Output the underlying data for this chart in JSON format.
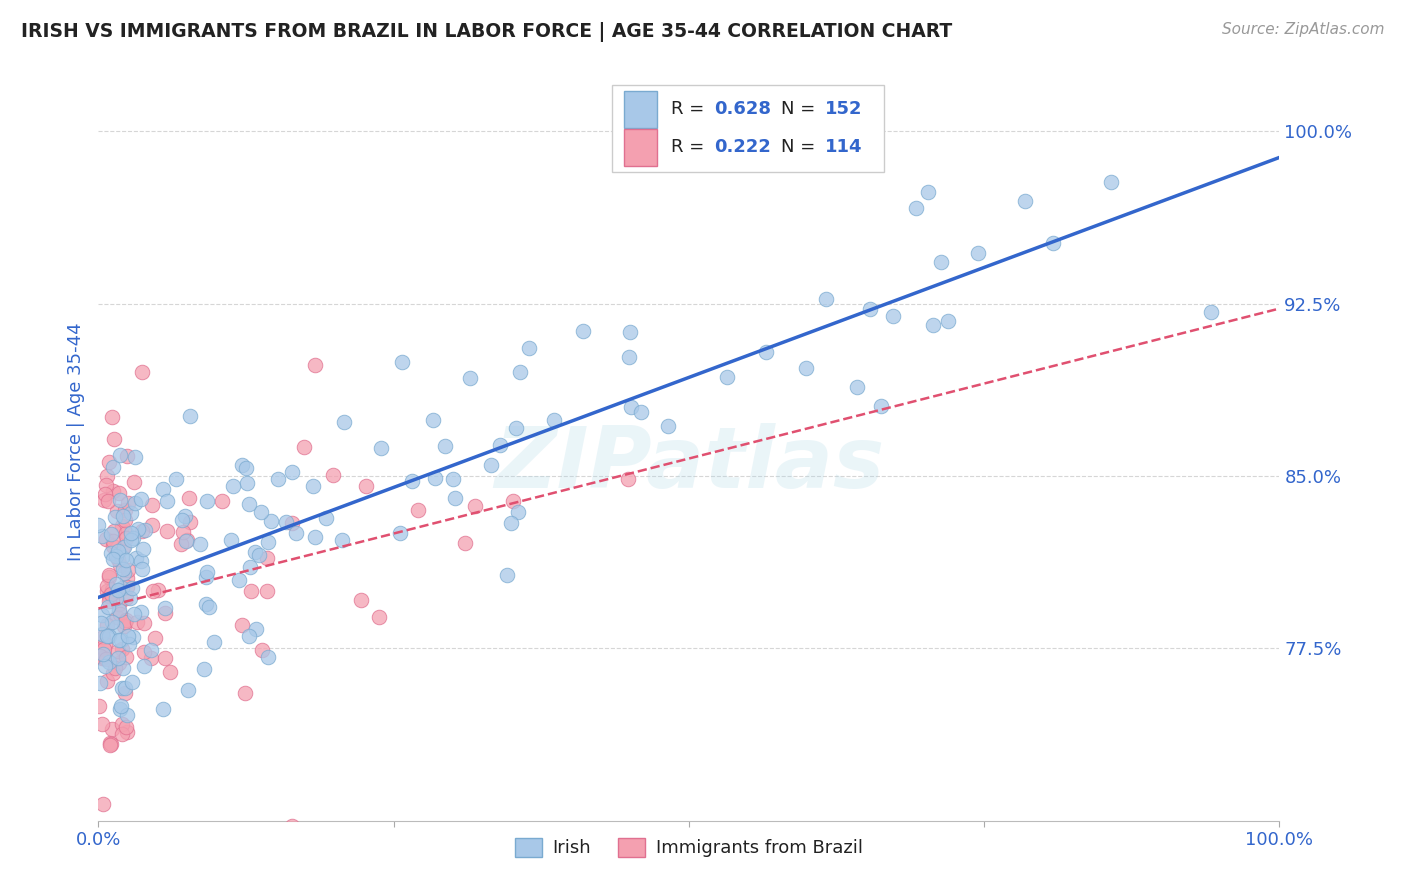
{
  "title": "IRISH VS IMMIGRANTS FROM BRAZIL IN LABOR FORCE | AGE 35-44 CORRELATION CHART",
  "source": "Source: ZipAtlas.com",
  "xlabel": "",
  "ylabel": "In Labor Force | Age 35-44",
  "xlim": [
    0.0,
    1.0
  ],
  "ylim": [
    0.7,
    1.03
  ],
  "yticks": [
    0.775,
    0.85,
    0.925,
    1.0
  ],
  "ytick_labels": [
    "77.5%",
    "85.0%",
    "92.5%",
    "100.0%"
  ],
  "irish_R": 0.628,
  "irish_N": 152,
  "brazil_R": 0.222,
  "brazil_N": 114,
  "irish_color": "#a8c8e8",
  "brazil_color": "#f4a0b0",
  "irish_edge_color": "#7aaad0",
  "brazil_edge_color": "#e07090",
  "trend_irish_color": "#3366cc",
  "trend_brazil_color": "#e05070",
  "watermark_text": "ZIPatlas",
  "background_color": "#ffffff",
  "title_color": "#222222",
  "axis_label_color": "#3366cc",
  "tick_color": "#3366cc",
  "grid_color": "#cccccc",
  "legend_value_color": "#3366cc"
}
